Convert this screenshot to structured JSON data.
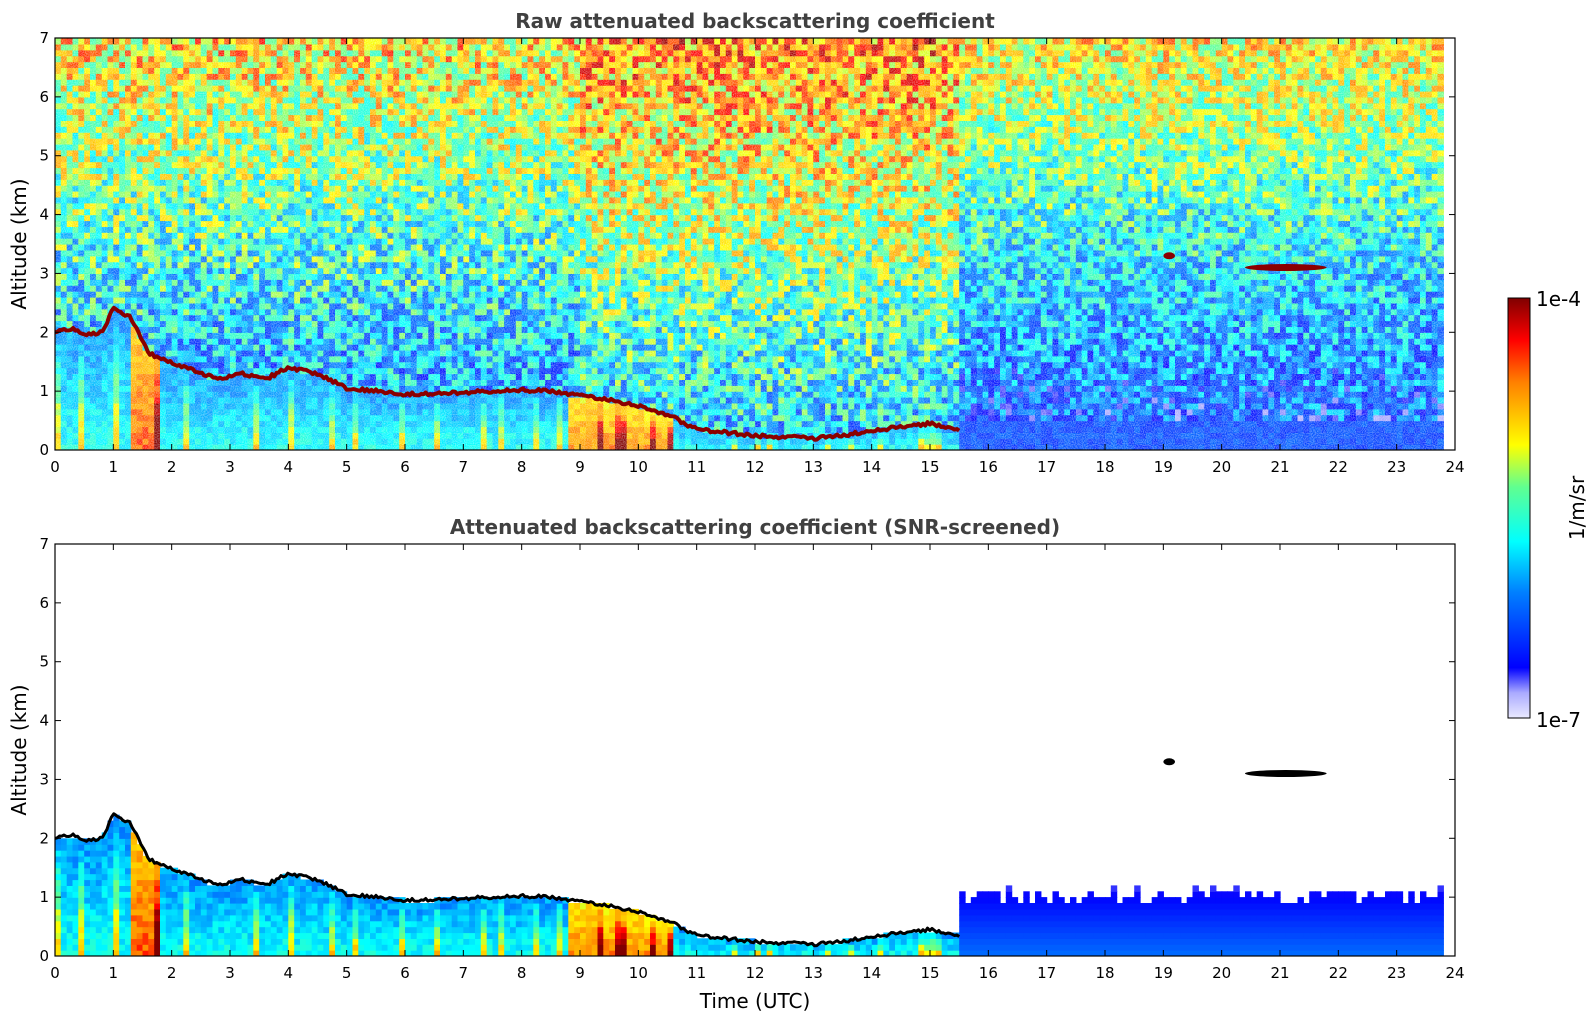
{
  "chart_data": [
    {
      "type": "heatmap",
      "title": "Raw attenuated backscattering coefficient",
      "xlabel": "",
      "ylabel": "Altitude (km)",
      "xlim": [
        0,
        24
      ],
      "ylim": [
        0,
        7
      ],
      "xticks": [
        "0",
        "1",
        "2",
        "3",
        "4",
        "5",
        "6",
        "7",
        "8",
        "9",
        "10",
        "11",
        "12",
        "13",
        "14",
        "15",
        "16",
        "17",
        "18",
        "19",
        "20",
        "21",
        "22",
        "23",
        "24"
      ],
      "yticks": [
        "0",
        "1",
        "2",
        "3",
        "4",
        "5",
        "6",
        "7"
      ],
      "data_end_hour": 23.8,
      "screened": false,
      "cloud_base_km": {
        "time_utc": [
          0,
          0.3,
          0.6,
          0.8,
          1.0,
          1.3,
          1.6,
          1.8,
          2.1,
          2.5,
          2.8,
          3.2,
          3.6,
          4.0,
          4.5,
          5.0,
          5.5,
          6.0,
          6.5,
          7.0,
          7.5,
          8.0,
          8.5,
          9.0,
          9.5,
          10.0,
          10.5,
          11.0,
          11.5,
          12.0,
          12.5,
          13.0,
          13.5,
          14.0,
          14.5,
          15.0,
          15.5
        ],
        "altitude_km": [
          2.0,
          2.05,
          1.95,
          2.0,
          2.4,
          2.25,
          1.65,
          1.55,
          1.45,
          1.3,
          1.2,
          1.3,
          1.2,
          1.4,
          1.3,
          1.05,
          1.0,
          0.95,
          0.95,
          0.98,
          1.0,
          1.02,
          1.0,
          0.92,
          0.85,
          0.75,
          0.6,
          0.35,
          0.3,
          0.25,
          0.22,
          0.2,
          0.25,
          0.32,
          0.4,
          0.45,
          0.35
        ]
      },
      "elevated_layers": [
        {
          "t0": 19.0,
          "t1": 19.2,
          "alt_km": 3.3
        },
        {
          "t0": 20.4,
          "t1": 21.8,
          "alt_km": 3.1
        }
      ]
    },
    {
      "type": "heatmap",
      "title": "Attenuated backscattering coefficient (SNR-screened)",
      "xlabel": "Time (UTC)",
      "ylabel": "Altitude (km)",
      "xlim": [
        0,
        24
      ],
      "ylim": [
        0,
        7
      ],
      "xticks": [
        "0",
        "1",
        "2",
        "3",
        "4",
        "5",
        "6",
        "7",
        "8",
        "9",
        "10",
        "11",
        "12",
        "13",
        "14",
        "15",
        "16",
        "17",
        "18",
        "19",
        "20",
        "21",
        "22",
        "23",
        "24"
      ],
      "yticks": [
        "0",
        "1",
        "2",
        "3",
        "4",
        "5",
        "6",
        "7"
      ],
      "data_end_hour": 23.8,
      "screened": true,
      "elevated_layers": [
        {
          "t0": 19.0,
          "t1": 19.2,
          "alt_km": 3.3
        },
        {
          "t0": 20.4,
          "t1": 21.8,
          "alt_km": 3.1
        }
      ]
    }
  ],
  "colorbar": {
    "label": "1/m/sr",
    "max_label": "1e-4",
    "min_label": "1e-7",
    "scale": "log",
    "colormap": "jet",
    "range": [
      1e-07,
      0.0001
    ]
  },
  "colors": {
    "cloud": "#8b0000",
    "screened_cloud": "#000000",
    "title": "#404040"
  }
}
